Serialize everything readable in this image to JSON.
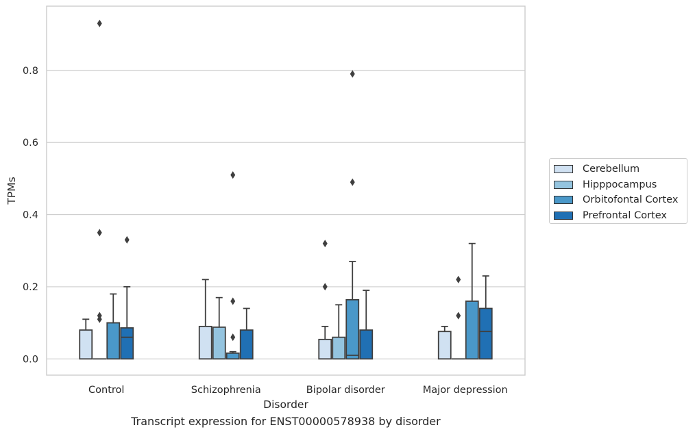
{
  "chart_data": {
    "type": "box",
    "xlabel": "Disorder",
    "ylabel": "TPMs",
    "ylim": [
      -0.045,
      0.978
    ],
    "yticks": [
      0.0,
      0.2,
      0.4,
      0.6,
      0.8
    ],
    "ytick_labels": [
      "0.0",
      "0.2",
      "0.4",
      "0.6",
      "0.8"
    ],
    "grid": "horizontal",
    "legend_position": "right",
    "categories": [
      "Control",
      "Schizophrenia",
      "Bipolar disorder",
      "Major depression"
    ],
    "series": [
      {
        "name": "Cerebellum",
        "color": "#d0e1f2",
        "boxes": [
          {
            "q1": 0.0,
            "median": 0.0,
            "q3": 0.08,
            "whisker_low": 0.0,
            "whisker_high": 0.11,
            "outliers": []
          },
          {
            "q1": 0.0,
            "median": 0.0,
            "q3": 0.09,
            "whisker_low": 0.0,
            "whisker_high": 0.22,
            "outliers": []
          },
          {
            "q1": 0.0,
            "median": 0.0,
            "q3": 0.054,
            "whisker_low": 0.0,
            "whisker_high": 0.09,
            "outliers": [
              0.2,
              0.32
            ]
          },
          {
            "q1": 0.0,
            "median": 0.0,
            "q3": 0.076,
            "whisker_low": 0.0,
            "whisker_high": 0.09,
            "outliers": []
          }
        ]
      },
      {
        "name": "Hipppocampus",
        "color": "#94c4df",
        "boxes": [
          {
            "q1": 0.0,
            "median": 0.0,
            "q3": 0.0,
            "whisker_low": 0.0,
            "whisker_high": 0.0,
            "outliers": [
              0.11,
              0.12,
              0.35,
              0.93
            ]
          },
          {
            "q1": 0.0,
            "median": 0.0,
            "q3": 0.088,
            "whisker_low": 0.0,
            "whisker_high": 0.17,
            "outliers": []
          },
          {
            "q1": 0.0,
            "median": 0.0,
            "q3": 0.06,
            "whisker_low": 0.0,
            "whisker_high": 0.15,
            "outliers": []
          },
          {
            "q1": 0.0,
            "median": 0.0,
            "q3": 0.0,
            "whisker_low": 0.0,
            "whisker_high": 0.0,
            "outliers": [
              0.12,
              0.22
            ]
          }
        ]
      },
      {
        "name": "Orbitofontal Cortex",
        "color": "#4a98c9",
        "boxes": [
          {
            "q1": 0.0,
            "median": 0.0,
            "q3": 0.1,
            "whisker_low": 0.0,
            "whisker_high": 0.18,
            "outliers": []
          },
          {
            "q1": 0.0,
            "median": 0.0,
            "q3": 0.016,
            "whisker_low": 0.0,
            "whisker_high": 0.02,
            "outliers": [
              0.06,
              0.16,
              0.51
            ]
          },
          {
            "q1": 0.0,
            "median": 0.01,
            "q3": 0.164,
            "whisker_low": 0.0,
            "whisker_high": 0.27,
            "outliers": [
              0.49,
              0.79
            ]
          },
          {
            "q1": 0.0,
            "median": 0.0,
            "q3": 0.16,
            "whisker_low": 0.0,
            "whisker_high": 0.32,
            "outliers": []
          }
        ]
      },
      {
        "name": "Prefrontal Cortex",
        "color": "#2070b4",
        "boxes": [
          {
            "q1": 0.0,
            "median": 0.06,
            "q3": 0.086,
            "whisker_low": 0.0,
            "whisker_high": 0.2,
            "outliers": [
              0.33
            ]
          },
          {
            "q1": 0.0,
            "median": 0.0,
            "q3": 0.08,
            "whisker_low": 0.0,
            "whisker_high": 0.14,
            "outliers": []
          },
          {
            "q1": 0.0,
            "median": 0.0,
            "q3": 0.08,
            "whisker_low": 0.0,
            "whisker_high": 0.19,
            "outliers": []
          },
          {
            "q1": 0.0,
            "median": 0.076,
            "q3": 0.14,
            "whisker_low": 0.0,
            "whisker_high": 0.23,
            "outliers": []
          }
        ]
      }
    ],
    "caption": "Transcript expression for ENST00000578938 by disorder",
    "colors": {
      "box_edge": "#3f3f3f",
      "grid": "#cccccc",
      "spine": "#cccccc",
      "text": "#262626"
    }
  }
}
